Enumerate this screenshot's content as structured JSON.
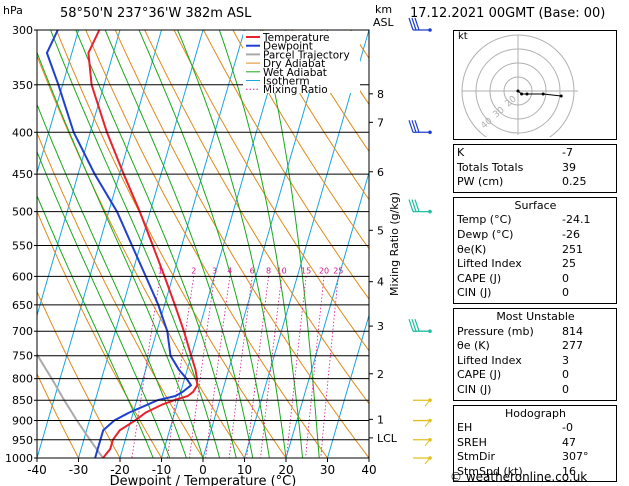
{
  "header": {
    "hpa_label": "hPa",
    "location": "58°50'N  237°36'W  382m  ASL",
    "km_label": "km",
    "asl_label": "ASL",
    "datetime": "17.12.2021  00GMT  (Base: 00)"
  },
  "chart_data": {
    "type": "skew-t",
    "pressure_levels": [
      300,
      350,
      400,
      450,
      500,
      550,
      600,
      650,
      700,
      750,
      800,
      850,
      900,
      950,
      1000
    ],
    "x_ticks": [
      -40,
      -30,
      -20,
      -10,
      0,
      10,
      20,
      30,
      40
    ],
    "xlabel": "Dewpoint / Temperature (°C)",
    "ylabel_left": "hPa",
    "ylabel_right": "Mixing Ratio (g/kg)",
    "km_ticks": [
      {
        "label": "8",
        "p": 359
      },
      {
        "label": "7",
        "p": 389
      },
      {
        "label": "6",
        "p": 447
      },
      {
        "label": "5",
        "p": 527
      },
      {
        "label": "4",
        "p": 609
      },
      {
        "label": "3",
        "p": 690
      },
      {
        "label": "2",
        "p": 789
      },
      {
        "label": "1",
        "p": 897
      },
      {
        "label": "LCL",
        "p": 945
      }
    ],
    "mixing_ratio_labels": [
      "1",
      "2",
      "3",
      "4",
      "6",
      "8",
      "10",
      "15",
      "20",
      "25"
    ],
    "mixing_ratios": [
      1,
      2,
      3,
      4,
      6,
      8,
      10,
      15,
      20,
      25
    ],
    "dry_adiabats": [
      -30,
      -20,
      -10,
      0,
      10,
      20,
      30,
      40,
      50,
      60,
      70,
      80,
      90,
      100,
      110,
      120
    ],
    "wet_adiabats": [
      -12,
      -8,
      -4,
      0,
      4,
      8,
      12,
      16,
      20,
      24,
      28
    ],
    "isotherms": [
      -120,
      -110,
      -100,
      -90,
      -80,
      -70,
      -60,
      -50,
      -40,
      -30,
      -20,
      -10,
      0,
      10,
      20,
      30,
      40
    ],
    "temperature": {
      "p": [
        1000,
        975,
        950,
        925,
        900,
        880,
        860,
        850,
        840,
        830,
        815,
        800,
        780,
        750,
        700,
        650,
        600,
        550,
        500,
        450,
        400,
        350,
        320,
        300
      ],
      "t": [
        -24.1,
        -23.0,
        -23.0,
        -22.0,
        -19.0,
        -17.0,
        -13.5,
        -11.0,
        -8.0,
        -7.0,
        -6.5,
        -7.0,
        -8.0,
        -10.0,
        -13.5,
        -17.5,
        -22.0,
        -27.0,
        -32.5,
        -39.0,
        -46.0,
        -53.0,
        -56.0,
        -55.0
      ]
    },
    "dewpoint": {
      "p": [
        1000,
        975,
        950,
        925,
        900,
        880,
        860,
        850,
        840,
        830,
        815,
        800,
        780,
        750,
        700,
        650,
        600,
        550,
        500,
        450,
        400,
        350,
        320,
        300
      ],
      "t": [
        -26.0,
        -26.0,
        -26.0,
        -26.0,
        -24.0,
        -21.0,
        -17.0,
        -15.0,
        -11.0,
        -9.5,
        -8.0,
        -9.5,
        -12.0,
        -15.0,
        -17.5,
        -21.5,
        -26.5,
        -32.0,
        -38.0,
        -46.0,
        -54.0,
        -61.0,
        -66.0,
        -65.0
      ]
    },
    "parcel": {
      "p": [
        1000,
        950,
        900,
        850,
        800,
        750,
        700,
        650,
        600,
        550,
        500
      ],
      "t": [
        -24.1,
        -28.5,
        -33.0,
        -37.5,
        -42.0,
        -47.0,
        -52.0,
        -57.5,
        -63.0,
        -69.0,
        -75.0
      ]
    },
    "legend": [
      "Temperature",
      "Dewpoint",
      "Parcel Trajectory",
      "Dry Adiabat",
      "Wet Adiabat",
      "Isotherm",
      "Mixing Ratio"
    ],
    "colors": {
      "temperature": "#e8212b",
      "dewpoint": "#1f3fcf",
      "parcel": "#aaaaaa",
      "dry_adiabat": "#e08a1a",
      "wet_adiabat": "#1aa81a",
      "isotherm": "#1aa6e0",
      "mixing_ratio": "#d4158c",
      "mixing_label": "#d4158c",
      "wind_low": "#e0c020",
      "wind_mid": "#1fbf9f",
      "wind_high": "#1f3fcf"
    },
    "wind_barbs": [
      {
        "p": 300,
        "color": "high"
      },
      {
        "p": 400,
        "color": "high"
      },
      {
        "p": 500,
        "color": "mid"
      },
      {
        "p": 700,
        "color": "mid"
      },
      {
        "p": 850,
        "color": "low"
      },
      {
        "p": 900,
        "color": "low"
      },
      {
        "p": 950,
        "color": "low"
      },
      {
        "p": 1000,
        "color": "low"
      }
    ]
  },
  "hodograph": {
    "label": "kt",
    "ring_labels": [
      "40",
      "30",
      "20"
    ],
    "points": [
      [
        0,
        0
      ],
      [
        2,
        -3
      ],
      [
        5,
        -3
      ],
      [
        14,
        -3
      ],
      [
        24,
        -5
      ]
    ]
  },
  "indices": {
    "rows": [
      {
        "label": "K",
        "value": "-7"
      },
      {
        "label": "Totals Totals",
        "value": "39"
      },
      {
        "label": "PW (cm)",
        "value": "0.25"
      }
    ]
  },
  "surface": {
    "title": "Surface",
    "rows": [
      {
        "label": "Temp (°C)",
        "value": "-24.1"
      },
      {
        "label": "Dewp (°C)",
        "value": "-26"
      },
      {
        "label": "θe(K)",
        "value": "251"
      },
      {
        "label": "Lifted Index",
        "value": "25"
      },
      {
        "label": "CAPE (J)",
        "value": "0"
      },
      {
        "label": "CIN (J)",
        "value": "0"
      }
    ]
  },
  "unstable": {
    "title": "Most Unstable",
    "rows": [
      {
        "label": "Pressure (mb)",
        "value": "814"
      },
      {
        "label": "θe (K)",
        "value": "277"
      },
      {
        "label": "Lifted Index",
        "value": "3"
      },
      {
        "label": "CAPE (J)",
        "value": "0"
      },
      {
        "label": "CIN (J)",
        "value": "0"
      }
    ]
  },
  "hodo_table": {
    "title": "Hodograph",
    "rows": [
      {
        "label": "EH",
        "value": "-0"
      },
      {
        "label": "SREH",
        "value": "47"
      },
      {
        "label": "StmDir",
        "value": "307°"
      },
      {
        "label": "StmSpd (kt)",
        "value": "16"
      }
    ]
  },
  "copyright": "© weatheronline.co.uk"
}
